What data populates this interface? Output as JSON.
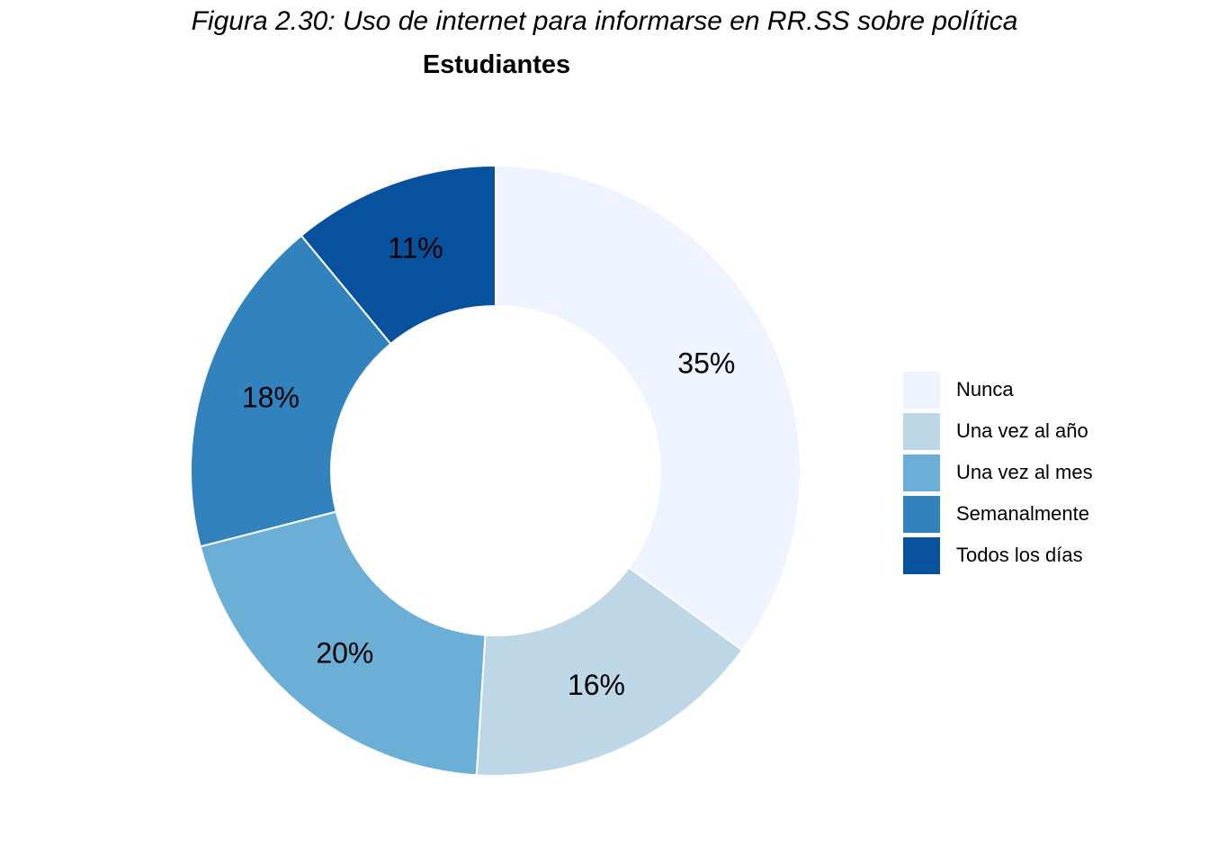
{
  "figure_caption": "Figura 2.30: Uso de internet para informarse en RR.SS sobre política",
  "chart_data": {
    "type": "pie",
    "variant": "donut",
    "title": "Estudiantes",
    "categories": [
      "Nunca",
      "Una vez al año",
      "Una vez al mes",
      "Semanalmente",
      "Todos los días"
    ],
    "values": [
      35,
      16,
      20,
      18,
      11
    ],
    "labels": [
      "35%",
      "16%",
      "20%",
      "18%",
      "11%"
    ],
    "colors": [
      "#eff3ff",
      "#bdd7e7",
      "#6baed6",
      "#3182bd",
      "#08519c"
    ],
    "legend_position": "right"
  }
}
